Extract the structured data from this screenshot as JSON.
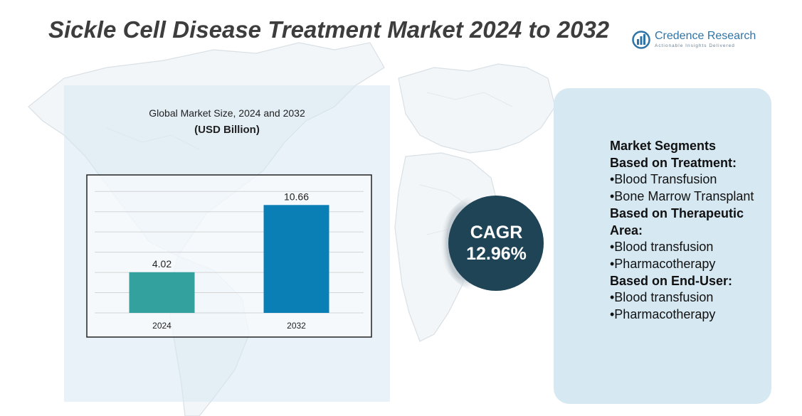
{
  "title": "Sickle Cell Disease Treatment Market 2024 to 2032",
  "logo": {
    "name": "Credence Research",
    "tagline": "Actionable Insights Delivered"
  },
  "chart_data": {
    "type": "bar",
    "title": "Global Market Size, 2024 and 2032",
    "subtitle": "(USD Billion)",
    "categories": [
      "2024",
      "2032"
    ],
    "values": [
      4.02,
      10.66
    ],
    "value_labels": [
      "4.02",
      "10.66"
    ],
    "ylim": [
      0,
      13
    ],
    "grid": true,
    "bar_colors": [
      "#33a19e",
      "#0a7fb6"
    ]
  },
  "cagr": {
    "label": "CAGR",
    "value": "12.96%",
    "color": "#1e4456"
  },
  "segments": {
    "heading": "Market Segments",
    "lines": [
      {
        "text": "Based on Treatment:",
        "bold": true
      },
      {
        "text": "•Blood Transfusion",
        "bold": false
      },
      {
        "text": "•Bone Marrow Transplant",
        "bold": false
      },
      {
        "text": "Based on Therapeutic Area:",
        "bold": true
      },
      {
        "text": "•Blood transfusion",
        "bold": false
      },
      {
        "text": "•Pharmacotherapy",
        "bold": false
      },
      {
        "text": "Based on End-User:",
        "bold": true
      },
      {
        "text": "•Blood transfusion",
        "bold": false
      },
      {
        "text": "•Pharmacotherapy",
        "bold": false
      }
    ]
  }
}
